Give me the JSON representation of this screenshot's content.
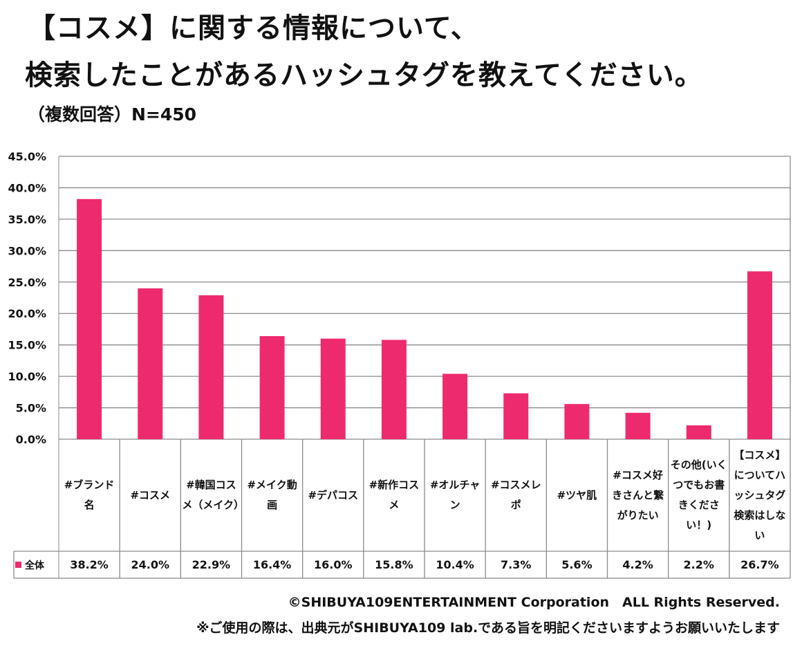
{
  "title_line1": "【コスメ】に関する情報について、",
  "title_line2": "検索したことがあるハッシュタグを教えてください。",
  "subtitle": "（複数回答）N=450",
  "chart_data": {
    "type": "bar",
    "title": "【コスメ】に関する情報について、検索したことがあるハッシュタグを教えてください。",
    "categories": [
      "#ブランド名",
      "#コスメ",
      "#韓国コスメ（メイク）",
      "#メイク動画",
      "#デパコス",
      "#新作コスメ",
      "#オルチャン",
      "#コスメレポ",
      "#ツヤ肌",
      "#コスメ好きさんと繋がりたい",
      "その他(いくつでもお書きください！)",
      "【コスメ】についてハッシュタグ検索はしない"
    ],
    "series": [
      {
        "name": "全体",
        "values": [
          38.2,
          24.0,
          22.9,
          16.4,
          16.0,
          15.8,
          10.4,
          7.3,
          5.6,
          4.2,
          2.2,
          26.7
        ],
        "labels": [
          "38.2%",
          "24.0%",
          "22.9%",
          "16.4%",
          "16.0%",
          "15.8%",
          "10.4%",
          "7.3%",
          "5.6%",
          "4.2%",
          "2.2%",
          "26.7%"
        ]
      }
    ],
    "yticks": [
      "0.0%",
      "5.0%",
      "10.0%",
      "15.0%",
      "20.0%",
      "25.0%",
      "30.0%",
      "35.0%",
      "40.0%",
      "45.0%"
    ],
    "ylim": [
      0,
      45
    ],
    "grid": true,
    "legend": "bottom-left in data table",
    "bar_color": "#EE2A6E"
  },
  "footer": {
    "copyright": "©SHIBUYA109ENTERTAINMENT Corporation　ALL Rights Reserved.",
    "note": "※ご使用の際は、出典元がSHIBUYA109 lab.である旨を明記くださいますようお願いいたします"
  }
}
